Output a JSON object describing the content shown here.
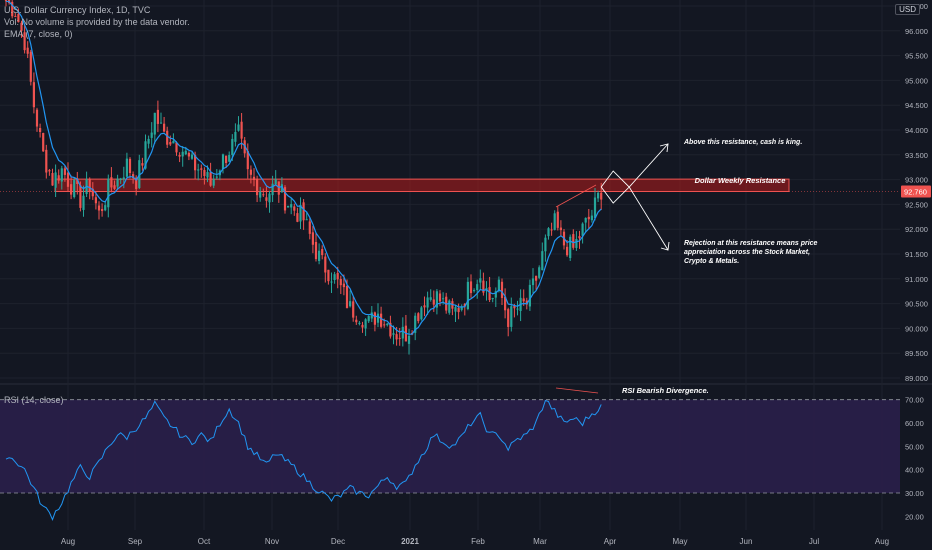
{
  "header": {
    "title": "U.S. Dollar Currency Index, 1D, TVC",
    "volume_note": "Vol: No volume is provided by the data vendor.",
    "ema_label": "EMA (7, close, 0)",
    "currency": "USD"
  },
  "rsi_pane": {
    "label": "RSI (14, close)"
  },
  "colors": {
    "background": "#131722",
    "up": "#26a69a",
    "down": "#ef5350",
    "ema": "#2196f3",
    "rsi_line": "#2196f3",
    "rsi_band": "#2a1f4a",
    "resistance_fill": "#b71c1c",
    "annotation": "#ffffff",
    "divergence": "#ef5350"
  },
  "chart_data": [
    {
      "type": "candlestick",
      "title": "U.S. Dollar Currency Index, 1D, TVC",
      "x_ticks": [
        "Aug",
        "Sep",
        "Oct",
        "Nov",
        "Dec",
        "2021",
        "Feb",
        "Mar",
        "Apr",
        "May",
        "Jun",
        "Jul",
        "Aug"
      ],
      "y_ticks": [
        "89.000",
        "89.500",
        "90.000",
        "90.500",
        "91.000",
        "91.500",
        "92.000",
        "92.500",
        "93.000",
        "93.500",
        "94.000",
        "94.500",
        "95.000",
        "95.500",
        "96.000",
        "96.500"
      ],
      "ylim": [
        89.0,
        96.5
      ],
      "last_price": "92.760",
      "close_anchors": [
        [
          0,
          96.6
        ],
        [
          3,
          96.4
        ],
        [
          6,
          95.8
        ],
        [
          9,
          94.5
        ],
        [
          12,
          93.5
        ],
        [
          15,
          93.0
        ],
        [
          18,
          93.2
        ],
        [
          21,
          92.9
        ],
        [
          24,
          92.6
        ],
        [
          27,
          92.9
        ],
        [
          30,
          92.3
        ],
        [
          33,
          92.8
        ],
        [
          36,
          93.0
        ],
        [
          39,
          93.3
        ],
        [
          42,
          93.0
        ],
        [
          45,
          93.6
        ],
        [
          48,
          94.3
        ],
        [
          51,
          93.9
        ],
        [
          54,
          93.8
        ],
        [
          57,
          93.6
        ],
        [
          60,
          93.3
        ],
        [
          63,
          93.2
        ],
        [
          66,
          92.9
        ],
        [
          69,
          93.3
        ],
        [
          72,
          93.6
        ],
        [
          75,
          93.9
        ],
        [
          78,
          93.1
        ],
        [
          81,
          92.9
        ],
        [
          84,
          92.7
        ],
        [
          87,
          92.9
        ],
        [
          90,
          92.6
        ],
        [
          93,
          92.4
        ],
        [
          96,
          92.2
        ],
        [
          99,
          91.7
        ],
        [
          102,
          91.3
        ],
        [
          105,
          91.1
        ],
        [
          108,
          90.8
        ],
        [
          111,
          90.4
        ],
        [
          114,
          90.3
        ],
        [
          117,
          90.1
        ],
        [
          120,
          90.3
        ],
        [
          123,
          90.1
        ],
        [
          126,
          89.9
        ],
        [
          129,
          89.9
        ],
        [
          132,
          90.2
        ],
        [
          135,
          90.6
        ],
        [
          138,
          90.7
        ],
        [
          141,
          90.5
        ],
        [
          144,
          90.3
        ],
        [
          147,
          90.5
        ],
        [
          150,
          90.9
        ],
        [
          153,
          91.1
        ],
        [
          156,
          90.6
        ],
        [
          159,
          90.8
        ],
        [
          162,
          90.2
        ],
        [
          165,
          90.4
        ],
        [
          168,
          90.5
        ],
        [
          171,
          91.0
        ],
        [
          174,
          91.7
        ],
        [
          177,
          92.1
        ],
        [
          180,
          91.7
        ],
        [
          183,
          91.6
        ],
        [
          186,
          92.0
        ],
        [
          189,
          92.3
        ],
        [
          192,
          92.8
        ]
      ],
      "ema": {
        "label": "EMA (7, close, 0)",
        "length": 7
      },
      "annotations": {
        "resistance_label": "Dollar Weekly Resistance",
        "resistance_zone": [
          92.76,
          92.96
        ],
        "above_note": "Above this resistance, cash is king.",
        "rejection_lines": [
          "Rejection at this resistance means price",
          "appreciation across the Stock Market,",
          "Crypto & Metals."
        ]
      }
    },
    {
      "type": "line",
      "title": "RSI (14, close)",
      "y_ticks": [
        "20.00",
        "30.00",
        "40.00",
        "50.00",
        "60.00",
        "70.00"
      ],
      "ylim": [
        15,
        75
      ],
      "band": [
        30,
        70
      ],
      "annotation": "RSI Bearish Divergence.",
      "anchors": [
        [
          0,
          46
        ],
        [
          3,
          44
        ],
        [
          6,
          40
        ],
        [
          9,
          32
        ],
        [
          12,
          24
        ],
        [
          15,
          20
        ],
        [
          18,
          26
        ],
        [
          21,
          34
        ],
        [
          24,
          41
        ],
        [
          27,
          37
        ],
        [
          30,
          43
        ],
        [
          33,
          50
        ],
        [
          36,
          55
        ],
        [
          39,
          54
        ],
        [
          42,
          58
        ],
        [
          45,
          62
        ],
        [
          48,
          68
        ],
        [
          51,
          62
        ],
        [
          54,
          58
        ],
        [
          57,
          54
        ],
        [
          60,
          52
        ],
        [
          63,
          55
        ],
        [
          66,
          52
        ],
        [
          69,
          60
        ],
        [
          72,
          66
        ],
        [
          75,
          60
        ],
        [
          78,
          50
        ],
        [
          81,
          46
        ],
        [
          84,
          42
        ],
        [
          87,
          47
        ],
        [
          90,
          44
        ],
        [
          93,
          41
        ],
        [
          96,
          37
        ],
        [
          99,
          33
        ],
        [
          102,
          30
        ],
        [
          105,
          27
        ],
        [
          108,
          29
        ],
        [
          111,
          32
        ],
        [
          114,
          30
        ],
        [
          117,
          29
        ],
        [
          120,
          33
        ],
        [
          123,
          37
        ],
        [
          126,
          33
        ],
        [
          129,
          34
        ],
        [
          132,
          42
        ],
        [
          135,
          48
        ],
        [
          138,
          55
        ],
        [
          141,
          52
        ],
        [
          144,
          50
        ],
        [
          147,
          54
        ],
        [
          150,
          60
        ],
        [
          153,
          63
        ],
        [
          156,
          55
        ],
        [
          159,
          55
        ],
        [
          162,
          49
        ],
        [
          165,
          53
        ],
        [
          168,
          55
        ],
        [
          171,
          60
        ],
        [
          174,
          70
        ],
        [
          177,
          65
        ],
        [
          180,
          60
        ],
        [
          183,
          62
        ],
        [
          186,
          60
        ],
        [
          189,
          64
        ],
        [
          192,
          67
        ]
      ]
    }
  ]
}
